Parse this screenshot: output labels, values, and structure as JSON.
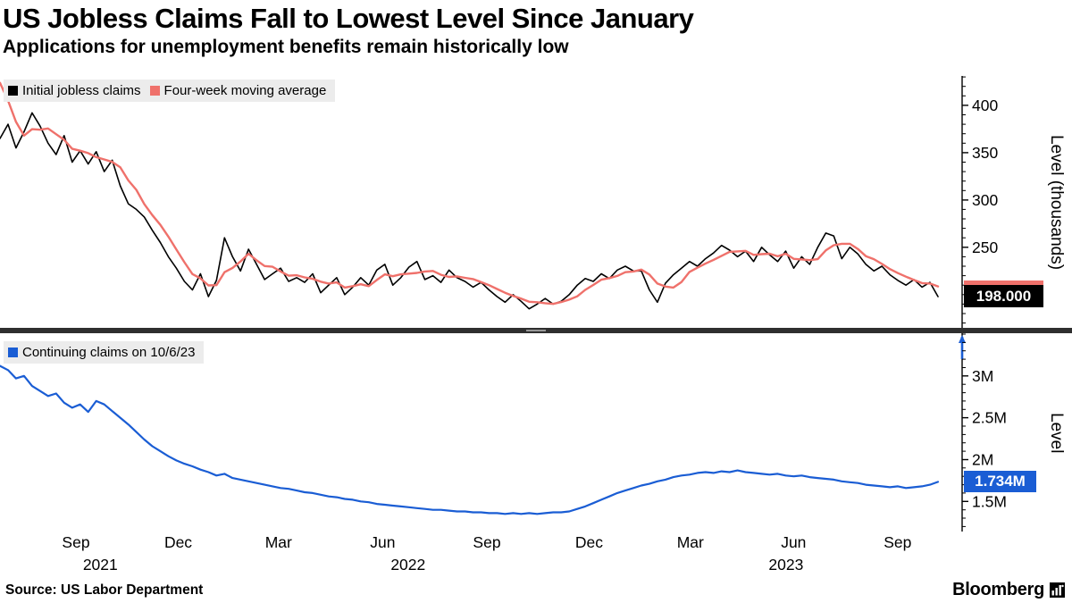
{
  "header": {
    "title": "US Jobless Claims Fall to Lowest Level Since January",
    "subtitle": "Applications for unemployment benefits remain historically low"
  },
  "source": {
    "label": "Source: US Labor Department"
  },
  "branding": {
    "logo_text": "Bloomberg"
  },
  "colors": {
    "initial_claims": "#000000",
    "moving_average": "#ef716b",
    "continuing_claims": "#1a5dd4",
    "legend_background": "#ececec",
    "separator": "#2f2f2f"
  },
  "chart_data": {
    "type": "line",
    "panels": [
      {
        "panel": "top",
        "ylabel": "Level (thousands)",
        "ylim": [
          164,
          431
        ],
        "minor_step": 10,
        "yticks": [
          {
            "v": 250,
            "label": "250"
          },
          {
            "v": 300,
            "label": "300"
          },
          {
            "v": 350,
            "label": "350"
          },
          {
            "v": 400,
            "label": "400"
          }
        ],
        "last_value_label": "198.000",
        "series": [
          {
            "name": "Initial jobless claims",
            "color": "#000000",
            "values": [
              365,
              380,
              355,
              372,
              392,
              378,
              360,
              348,
              368,
              340,
              352,
              338,
              351,
              330,
              342,
              315,
              296,
              290,
              282,
              268,
              255,
              240,
              228,
              214,
              205,
              222,
              198,
              215,
              260,
              240,
              225,
              248,
              232,
              216,
              222,
              228,
              214,
              218,
              213,
              222,
              202,
              210,
              218,
              200,
              208,
              218,
              210,
              226,
              232,
              210,
              218,
              229,
              235,
              216,
              220,
              213,
              226,
              218,
              214,
              208,
              213,
              205,
              198,
              192,
              200,
              193,
              185,
              190,
              196,
              190,
              193,
              200,
              210,
              217,
              214,
              222,
              217,
              226,
              230,
              225,
              225,
              205,
              192,
              212,
              221,
              228,
              235,
              230,
              238,
              244,
              252,
              247,
              240,
              246,
              235,
              250,
              242,
              235,
              246,
              228,
              240,
              232,
              250,
              265,
              262,
              238,
              250,
              243,
              232,
              225,
              230,
              221,
              215,
              210,
              216,
              208,
              213,
              198
            ]
          },
          {
            "name": "Four-week moving average",
            "color": "#ef716b",
            "derived": "moving_average_4",
            "seed": [
              455,
              445,
              430
            ]
          }
        ]
      },
      {
        "panel": "bottom",
        "ylabel": "Level",
        "ylim": [
          1.14,
          3.5
        ],
        "minor_step": 0.1,
        "yticks": [
          {
            "v": 1.5,
            "label": "1.5M"
          },
          {
            "v": 2.0,
            "label": "2M"
          },
          {
            "v": 2.5,
            "label": "2.5M"
          },
          {
            "v": 3.0,
            "label": "3M"
          }
        ],
        "last_value_label": "1.734M",
        "series": [
          {
            "name": "Continuing claims on 10/6/23",
            "color": "#1a5dd4",
            "values": [
              3.12,
              3.07,
              2.97,
              3.0,
              2.88,
              2.82,
              2.76,
              2.79,
              2.68,
              2.62,
              2.66,
              2.57,
              2.7,
              2.66,
              2.58,
              2.5,
              2.42,
              2.33,
              2.24,
              2.16,
              2.1,
              2.04,
              1.99,
              1.95,
              1.92,
              1.88,
              1.85,
              1.81,
              1.83,
              1.78,
              1.76,
              1.74,
              1.72,
              1.7,
              1.68,
              1.66,
              1.65,
              1.63,
              1.61,
              1.6,
              1.58,
              1.56,
              1.55,
              1.53,
              1.52,
              1.5,
              1.49,
              1.47,
              1.46,
              1.45,
              1.44,
              1.43,
              1.42,
              1.41,
              1.4,
              1.4,
              1.39,
              1.38,
              1.38,
              1.37,
              1.37,
              1.36,
              1.36,
              1.35,
              1.36,
              1.35,
              1.36,
              1.35,
              1.36,
              1.37,
              1.37,
              1.38,
              1.41,
              1.44,
              1.48,
              1.52,
              1.56,
              1.6,
              1.63,
              1.66,
              1.69,
              1.71,
              1.74,
              1.76,
              1.79,
              1.81,
              1.82,
              1.84,
              1.85,
              1.84,
              1.86,
              1.85,
              1.87,
              1.85,
              1.84,
              1.83,
              1.82,
              1.83,
              1.81,
              1.8,
              1.81,
              1.79,
              1.78,
              1.77,
              1.76,
              1.74,
              1.73,
              1.72,
              1.7,
              1.69,
              1.68,
              1.67,
              1.68,
              1.66,
              1.67,
              1.68,
              1.7,
              1.734
            ]
          }
        ]
      }
    ],
    "x_axis": {
      "ticks": [
        {
          "label": "Sep",
          "f": 0.081
        },
        {
          "label": "Dec",
          "f": 0.19
        },
        {
          "label": "Mar",
          "f": 0.297
        },
        {
          "label": "Jun",
          "f": 0.408
        },
        {
          "label": "Sep",
          "f": 0.519
        },
        {
          "label": "Dec",
          "f": 0.628
        },
        {
          "label": "Mar",
          "f": 0.736
        },
        {
          "label": "Jun",
          "f": 0.846
        },
        {
          "label": "Sep",
          "f": 0.957
        }
      ],
      "years": [
        {
          "label": "2021",
          "f": 0.107
        },
        {
          "label": "2022",
          "f": 0.435
        },
        {
          "label": "2023",
          "f": 0.838
        }
      ]
    }
  }
}
